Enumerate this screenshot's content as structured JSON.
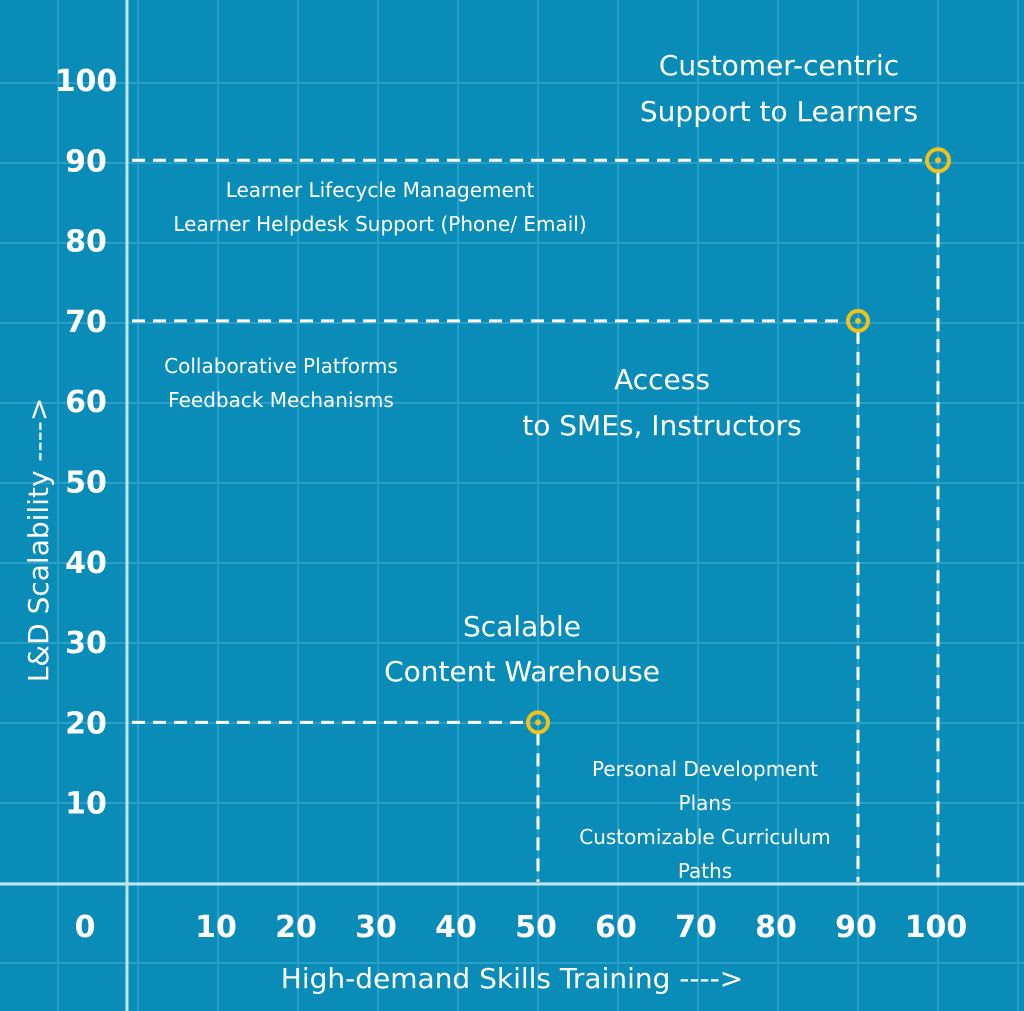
{
  "chart_data": {
    "type": "scatter",
    "xlabel": "High-demand Skills Training ---->",
    "ylabel": "L&D Scalability ---->",
    "xlim": [
      0,
      100
    ],
    "ylim": [
      0,
      100
    ],
    "origin_label": "0",
    "x_ticks": [
      "10",
      "20",
      "30",
      "40",
      "50",
      "60",
      "70",
      "80",
      "90",
      "100"
    ],
    "y_ticks": [
      "10",
      "20",
      "30",
      "40",
      "50",
      "60",
      "70",
      "80",
      "90",
      "100"
    ],
    "grid": true,
    "points": [
      {
        "x": 50,
        "y": 20,
        "label": [
          "Scalable",
          "Content Warehouse"
        ],
        "notes": [
          "Personal Development",
          "Plans",
          "Customizable Curriculum",
          "Paths"
        ]
      },
      {
        "x": 90,
        "y": 70,
        "label": [
          "Access",
          "to SMEs, Instructors"
        ],
        "notes": [
          "Collaborative Platforms",
          "Feedback Mechanisms"
        ]
      },
      {
        "x": 100,
        "y": 90,
        "label": [
          "Customer-centric",
          "Support to Learners"
        ],
        "notes": [
          "Learner Lifecycle Management",
          "Learner Helpdesk Support (Phone/ Email)"
        ]
      }
    ],
    "colors": {
      "background": "#0a8cb9",
      "grid": "#2aa0c8",
      "axis": "#bfe6f4",
      "marker": "#f2c21b",
      "text": "#ffffff"
    }
  }
}
